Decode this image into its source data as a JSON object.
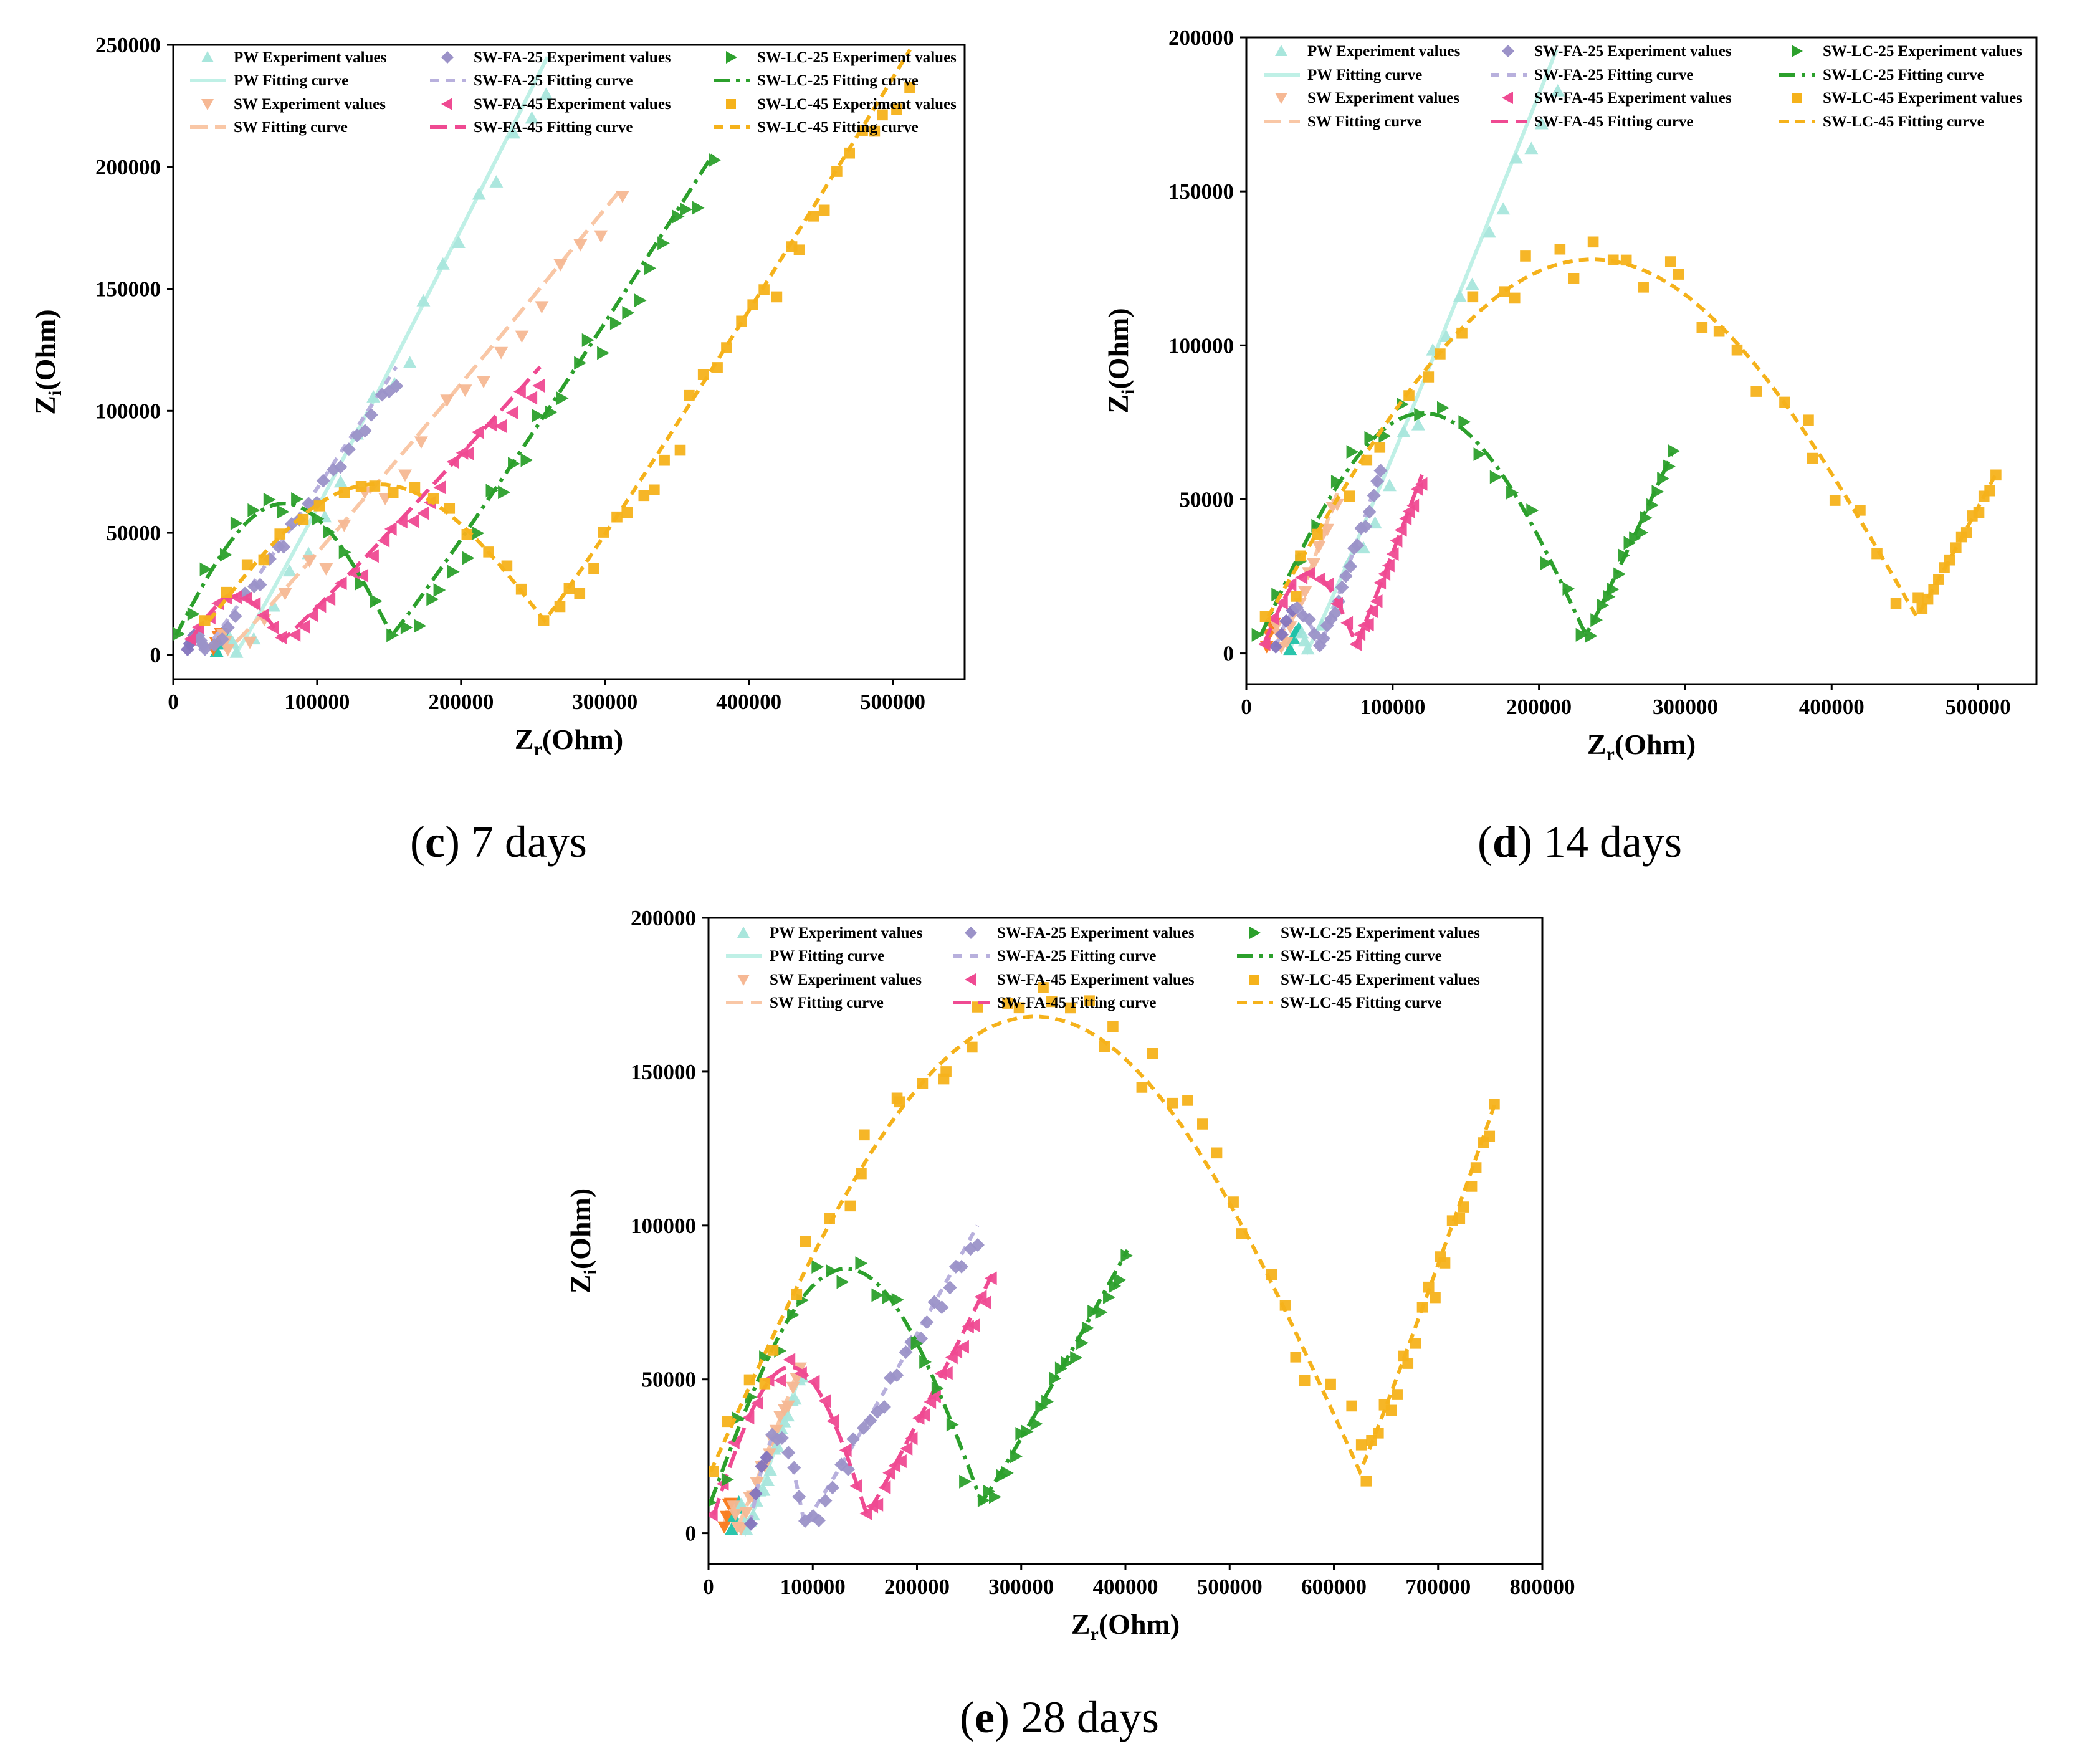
{
  "colors": {
    "PW": "#a8e6dc",
    "SW": "#f6b894",
    "SW-FA-25": "#9b92c8",
    "SW-FA-45": "#ef4a92",
    "SW-LC-25": "#2ca02c",
    "SW-LC-45": "#f5b21b",
    "PW_fit": "#bff0e6",
    "SW_fit": "#f9c7a6",
    "FA25_fit": "#b8b0dd",
    "PW_low": "#20c2a8",
    "SW_low": "#f97a1a",
    "FA25_low": "#8474bd"
  },
  "chart_data": [
    {
      "type": "scatter",
      "panel": "c",
      "caption_letter": "c",
      "caption_text": "7 days",
      "xlabel_main": "Z",
      "xlabel_sub": "r",
      "xlabel_unit": "(Ohm)",
      "ylabel_main": "Z",
      "ylabel_sub": "i",
      "ylabel_unit": "(Ohm)",
      "xlim": [
        0,
        550000
      ],
      "ylim": [
        -10000,
        250000
      ],
      "xticks": [
        0,
        100000,
        200000,
        300000,
        400000,
        500000
      ],
      "xtick_labels": [
        "0",
        "100000",
        "200000",
        "300000",
        "400000",
        "500000"
      ],
      "yticks": [
        0,
        50000,
        100000,
        150000,
        200000,
        250000
      ],
      "ytick_labels": [
        "0",
        "50000",
        "100000",
        "150000",
        "200000",
        "250000"
      ],
      "legend": [
        {
          "label": "PW Experiment values",
          "series": "PW",
          "kind": "marker",
          "marker": "triangle-up"
        },
        {
          "label": "SW-FA-25 Experiment values",
          "series": "SW-FA-25",
          "kind": "marker",
          "marker": "diamond"
        },
        {
          "label": "SW-LC-25 Experiment values",
          "series": "SW-LC-25",
          "kind": "marker",
          "marker": "triangle-right"
        },
        {
          "label": "PW Fitting curve",
          "series": "PW",
          "kind": "line",
          "dash": "solid"
        },
        {
          "label": "SW-FA-25 Fitting curve",
          "series": "SW-FA-25",
          "kind": "line",
          "dash": "dash"
        },
        {
          "label": "SW-LC-25 Fitting curve",
          "series": "SW-LC-25",
          "kind": "line",
          "dash": "dashdot"
        },
        {
          "label": "SW Experiment values",
          "series": "SW",
          "kind": "marker",
          "marker": "triangle-down"
        },
        {
          "label": "SW-FA-45 Experiment values",
          "series": "SW-FA-45",
          "kind": "marker",
          "marker": "triangle-left"
        },
        {
          "label": "SW-LC-45 Experiment values",
          "series": "SW-LC-45",
          "kind": "marker",
          "marker": "square"
        },
        {
          "label": "SW Fitting curve",
          "series": "SW",
          "kind": "line",
          "dash": "longdash"
        },
        {
          "label": "SW-FA-45 Fitting curve",
          "series": "SW-FA-45",
          "kind": "line",
          "dash": "longdash"
        },
        {
          "label": "SW-LC-45 Fitting curve",
          "series": "SW-LC-45",
          "kind": "line",
          "dash": "shortdash"
        }
      ],
      "series": [
        {
          "name": "PW",
          "kind": "nyquist",
          "arc_start": 30000,
          "arc_end": 44000,
          "arc_height": 8000,
          "min_y": 1000,
          "tail_end": [
            260000,
            245000
          ],
          "marker": "triangle-up",
          "n_arc": 6,
          "n_tail": 18
        },
        {
          "name": "SW",
          "kind": "nyquist",
          "arc_start": 28000,
          "arc_end": 38000,
          "arc_height": 9000,
          "min_y": 2000,
          "tail_end": [
            310000,
            190000
          ],
          "marker": "triangle-down",
          "n_arc": 6,
          "n_tail": 20
        },
        {
          "name": "SW-FA-25",
          "kind": "nyquist",
          "arc_start": 10000,
          "arc_end": 22000,
          "arc_height": 8000,
          "min_y": 2000,
          "tail_end": [
            155000,
            118000
          ],
          "marker": "diamond",
          "n_arc": 8,
          "n_tail": 24
        },
        {
          "name": "SW-FA-45",
          "kind": "nyquist",
          "arc_start": 12000,
          "arc_end": 76000,
          "arc_height": 24000,
          "min_y": 6000,
          "tail_end": [
            255000,
            118000
          ],
          "marker": "triangle-left",
          "n_arc": 10,
          "n_tail": 26
        },
        {
          "name": "SW-LC-25",
          "kind": "nyquist",
          "arc_start": 2000,
          "arc_end": 152000,
          "arc_height": 62000,
          "min_y": 8000,
          "tail_end": [
            375000,
            205000
          ],
          "marker": "triangle-right",
          "n_arc": 14,
          "n_tail": 26
        },
        {
          "name": "SW-LC-45",
          "kind": "nyquist",
          "arc_start": 25000,
          "arc_end": 258000,
          "arc_height": 70000,
          "min_y": 14000,
          "tail_end": [
            512000,
            248000
          ],
          "marker": "square",
          "n_arc": 18,
          "n_tail": 30
        }
      ]
    },
    {
      "type": "scatter",
      "panel": "d",
      "caption_letter": "d",
      "caption_text": "14 days",
      "xlabel_main": "Z",
      "xlabel_sub": "r",
      "xlabel_unit": "(Ohm)",
      "ylabel_main": "Z",
      "ylabel_sub": "i",
      "ylabel_unit": "(Ohm)",
      "xlim": [
        0,
        540000
      ],
      "ylim": [
        -10000,
        200000
      ],
      "xticks": [
        0,
        100000,
        200000,
        300000,
        400000,
        500000
      ],
      "xtick_labels": [
        "0",
        "100000",
        "200000",
        "300000",
        "400000",
        "500000"
      ],
      "yticks": [
        0,
        50000,
        100000,
        150000,
        200000
      ],
      "ytick_labels": [
        "0",
        "50000",
        "100000",
        "150000",
        "200000"
      ],
      "legend": [
        {
          "label": "PW Experiment values",
          "series": "PW",
          "kind": "marker",
          "marker": "triangle-up"
        },
        {
          "label": "SW-FA-25 Experiment values",
          "series": "SW-FA-25",
          "kind": "marker",
          "marker": "diamond"
        },
        {
          "label": "SW-LC-25 Experiment values",
          "series": "SW-LC-25",
          "kind": "marker",
          "marker": "triangle-right"
        },
        {
          "label": "PW Fitting curve",
          "series": "PW",
          "kind": "line",
          "dash": "solid"
        },
        {
          "label": "SW-FA-25 Fitting curve",
          "series": "SW-FA-25",
          "kind": "line",
          "dash": "dash"
        },
        {
          "label": "SW-LC-25 Fitting curve",
          "series": "SW-LC-25",
          "kind": "line",
          "dash": "dashdot"
        },
        {
          "label": "SW Experiment values",
          "series": "SW",
          "kind": "marker",
          "marker": "triangle-down"
        },
        {
          "label": "SW-FA-45 Experiment values",
          "series": "SW-FA-45",
          "kind": "marker",
          "marker": "triangle-left"
        },
        {
          "label": "SW-LC-45 Experiment values",
          "series": "SW-LC-45",
          "kind": "marker",
          "marker": "square"
        },
        {
          "label": "SW Fitting curve",
          "series": "SW",
          "kind": "line",
          "dash": "longdash"
        },
        {
          "label": "SW-FA-45 Fitting curve",
          "series": "SW-FA-45",
          "kind": "line",
          "dash": "longdash"
        },
        {
          "label": "SW-LC-45 Fitting curve",
          "series": "SW-LC-45",
          "kind": "line",
          "dash": "shortdash"
        }
      ],
      "series": [
        {
          "name": "PW",
          "kind": "nyquist",
          "arc_start": 30000,
          "arc_end": 42000,
          "arc_height": 8000,
          "min_y": 1000,
          "tail_end": [
            212000,
            196000
          ],
          "marker": "triangle-up",
          "n_arc": 6,
          "n_tail": 18
        },
        {
          "name": "SW",
          "kind": "nyquist",
          "arc_start": 14000,
          "arc_end": 24000,
          "arc_height": 10000,
          "min_y": 2000,
          "tail_end": [
            62000,
            52000
          ],
          "marker": "triangle-down",
          "n_arc": 6,
          "n_tail": 12
        },
        {
          "name": "SW-FA-25",
          "kind": "nyquist",
          "arc_start": 20000,
          "arc_end": 50000,
          "arc_height": 14000,
          "min_y": 2000,
          "tail_end": [
            92000,
            60000
          ],
          "marker": "diamond",
          "n_arc": 8,
          "n_tail": 16
        },
        {
          "name": "SW-FA-45",
          "kind": "nyquist",
          "arc_start": 12000,
          "arc_end": 75000,
          "arc_height": 26000,
          "min_y": 3000,
          "tail_end": [
            120000,
            58000
          ],
          "marker": "triangle-left",
          "n_arc": 10,
          "n_tail": 16
        },
        {
          "name": "SW-LC-25",
          "kind": "nyquist",
          "arc_start": 10000,
          "arc_end": 232000,
          "arc_height": 78000,
          "min_y": 6000,
          "tail_end": [
            292000,
            66000
          ],
          "marker": "triangle-right",
          "n_arc": 18,
          "n_tail": 16
        },
        {
          "name": "SW-LC-45",
          "kind": "nyquist",
          "arc_start": 15000,
          "arc_end": 458000,
          "arc_height": 128000,
          "min_y": 12000,
          "tail_end": [
            512000,
            58000
          ],
          "marker": "square",
          "n_arc": 34,
          "n_tail": 14
        }
      ]
    },
    {
      "type": "scatter",
      "panel": "e",
      "caption_letter": "e",
      "caption_text": "28 days",
      "xlabel_main": "Z",
      "xlabel_sub": "r",
      "xlabel_unit": "(Ohm)",
      "ylabel_main": "Z",
      "ylabel_sub": "i",
      "ylabel_unit": "(Ohm)",
      "xlim": [
        0,
        800000
      ],
      "ylim": [
        -10000,
        200000
      ],
      "xticks": [
        0,
        100000,
        200000,
        300000,
        400000,
        500000,
        600000,
        700000,
        800000
      ],
      "xtick_labels": [
        "0",
        "100000",
        "200000",
        "300000",
        "400000",
        "500000",
        "600000",
        "700000",
        "800000"
      ],
      "yticks": [
        0,
        50000,
        100000,
        150000,
        200000
      ],
      "ytick_labels": [
        "0",
        "50000",
        "100000",
        "150000",
        "200000"
      ],
      "legend": [
        {
          "label": "PW Experiment values",
          "series": "PW",
          "kind": "marker",
          "marker": "triangle-up"
        },
        {
          "label": "SW-FA-25 Experiment values",
          "series": "SW-FA-25",
          "kind": "marker",
          "marker": "diamond"
        },
        {
          "label": "SW-LC-25 Experiment values",
          "series": "SW-LC-25",
          "kind": "marker",
          "marker": "triangle-right"
        },
        {
          "label": "PW Fitting curve",
          "series": "PW",
          "kind": "line",
          "dash": "solid"
        },
        {
          "label": "SW-FA-25 Fitting curve",
          "series": "SW-FA-25",
          "kind": "line",
          "dash": "dash"
        },
        {
          "label": "SW-LC-25 Fitting curve",
          "series": "SW-LC-25",
          "kind": "line",
          "dash": "dashdot"
        },
        {
          "label": "SW Experiment values",
          "series": "SW",
          "kind": "marker",
          "marker": "triangle-down"
        },
        {
          "label": "SW-FA-45 Experiment values",
          "series": "SW-FA-45",
          "kind": "marker",
          "marker": "triangle-left"
        },
        {
          "label": "SW-LC-45 Experiment values",
          "series": "SW-LC-45",
          "kind": "marker",
          "marker": "square"
        },
        {
          "label": "SW Fitting curve",
          "series": "SW",
          "kind": "line",
          "dash": "longdash"
        },
        {
          "label": "SW-FA-45 Fitting curve",
          "series": "SW-FA-45",
          "kind": "line",
          "dash": "longdash"
        },
        {
          "label": "SW-LC-45 Fitting curve",
          "series": "SW-LC-45",
          "kind": "line",
          "dash": "shortdash"
        }
      ],
      "series": [
        {
          "name": "PW",
          "kind": "nyquist",
          "arc_start": 22000,
          "arc_end": 36000,
          "arc_height": 10000,
          "min_y": 1000,
          "tail_end": [
            90000,
            54000
          ],
          "marker": "triangle-up",
          "n_arc": 6,
          "n_tail": 16
        },
        {
          "name": "SW",
          "kind": "nyquist",
          "arc_start": 15000,
          "arc_end": 28000,
          "arc_height": 10000,
          "min_y": 2000,
          "tail_end": [
            88000,
            55000
          ],
          "marker": "triangle-down",
          "n_arc": 6,
          "n_tail": 16
        },
        {
          "name": "SW-FA-25",
          "kind": "nyquist",
          "arc_start": 40000,
          "arc_end": 92000,
          "arc_height": 32000,
          "min_y": 3000,
          "tail_end": [
            258000,
            100000
          ],
          "marker": "diamond",
          "n_arc": 10,
          "n_tail": 24
        },
        {
          "name": "SW-FA-45",
          "kind": "nyquist",
          "arc_start": 5000,
          "arc_end": 152000,
          "arc_height": 54000,
          "min_y": 6000,
          "tail_end": [
            272000,
            84000
          ],
          "marker": "triangle-left",
          "n_arc": 14,
          "n_tail": 22
        },
        {
          "name": "SW-LC-25",
          "kind": "nyquist",
          "arc_start": 2000,
          "arc_end": 262000,
          "arc_height": 86000,
          "min_y": 10000,
          "tail_end": [
            402000,
            92000
          ],
          "marker": "triangle-right",
          "n_arc": 20,
          "n_tail": 22
        },
        {
          "name": "SW-LC-45",
          "kind": "nyquist",
          "arc_start": 2000,
          "arc_end": 625000,
          "arc_height": 168000,
          "min_y": 20000,
          "tail_end": [
            755000,
            140000
          ],
          "marker": "square",
          "n_arc": 40,
          "n_tail": 22
        }
      ]
    }
  ]
}
